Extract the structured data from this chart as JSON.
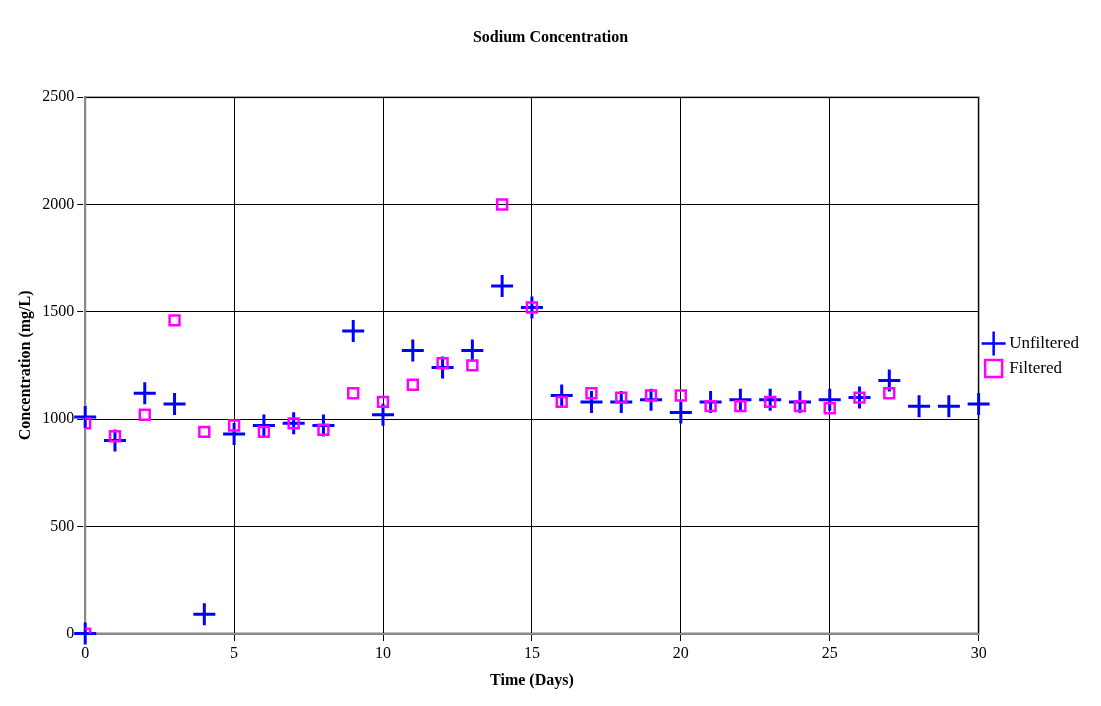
{
  "chart_data": {
    "type": "scatter",
    "title": "Sodium Concentration",
    "xlabel": "Time (Days)",
    "ylabel": "Concentration (mg/L)",
    "xlim": [
      0,
      30
    ],
    "xticks": [
      0,
      5,
      10,
      15,
      20,
      25,
      30
    ],
    "ylim": [
      0,
      2500
    ],
    "yticks": [
      0,
      500,
      1000,
      1500,
      2000,
      2500
    ],
    "grid": true,
    "legend": "right",
    "series": [
      {
        "name": "Unfiltered",
        "color": "#0000ff",
        "marker": "cross",
        "x": [
          0,
          0,
          1,
          2,
          3,
          4,
          5,
          6,
          7,
          8,
          9,
          10,
          11,
          12,
          13,
          14,
          15,
          16,
          17,
          18,
          19,
          20,
          21,
          22,
          23,
          24,
          25,
          26,
          27,
          28,
          29,
          30
        ],
        "values": [
          0,
          1010,
          900,
          1120,
          1070,
          90,
          930,
          970,
          980,
          970,
          1410,
          1020,
          1320,
          1240,
          1320,
          1620,
          1520,
          1110,
          1080,
          1080,
          1090,
          1030,
          1080,
          1090,
          1090,
          1080,
          1090,
          1100,
          1180,
          1060,
          1060,
          1070
        ]
      },
      {
        "name": "Filtered",
        "color": "#ff00ff",
        "marker": "square",
        "x": [
          0,
          0,
          1,
          2,
          3,
          4,
          5,
          6,
          7,
          8,
          9,
          10,
          11,
          12,
          13,
          14,
          15,
          16,
          17,
          18,
          19,
          20,
          21,
          22,
          23,
          24,
          25,
          26,
          27
        ],
        "values": [
          0,
          980,
          920,
          1020,
          1460,
          940,
          970,
          940,
          980,
          950,
          1120,
          1080,
          1160,
          1260,
          1250,
          2000,
          1520,
          1080,
          1120,
          1100,
          1110,
          1110,
          1060,
          1060,
          1080,
          1060,
          1050,
          1100,
          1120
        ]
      }
    ]
  }
}
